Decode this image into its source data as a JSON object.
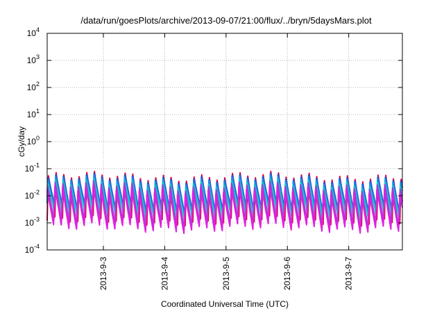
{
  "chart_data": {
    "type": "line",
    "title": "/data/run/goesPlots/archive/2013-09-07/21:00/flux/../bryn/5daysMars.plot",
    "xlabel": "Coordinated Universal Time (UTC)",
    "ylabel": "cGy/day",
    "yscale": "log",
    "ylim": [
      0.0001,
      10000
    ],
    "y_ticks": [
      {
        "base": "10",
        "exp": "-4",
        "value": 0.0001
      },
      {
        "base": "10",
        "exp": "-3",
        "value": 0.001
      },
      {
        "base": "10",
        "exp": "-2",
        "value": 0.01
      },
      {
        "base": "10",
        "exp": "-1",
        "value": 0.1
      },
      {
        "base": "10",
        "exp": "0",
        "value": 1
      },
      {
        "base": "10",
        "exp": "1",
        "value": 10
      },
      {
        "base": "10",
        "exp": "2",
        "value": 100
      },
      {
        "base": "10",
        "exp": "3",
        "value": 1000
      },
      {
        "base": "10",
        "exp": "4",
        "value": 10000
      }
    ],
    "xlim": [
      "2013-09-02 02:00",
      "2013-09-07 21:00"
    ],
    "x_ticks": [
      "2013-9-3",
      "2013-9-4",
      "2013-9-5",
      "2013-9-6",
      "2013-9-7"
    ],
    "grid": true,
    "oscillation_period_hours": 3,
    "series": [
      {
        "color": "#e0003c",
        "peak": 0.055,
        "trough": 0.0012
      },
      {
        "color": "#2050d8",
        "peak": 0.05,
        "trough": 0.003
      },
      {
        "color": "#1a8fe0",
        "peak": 0.04,
        "trough": 0.0025
      },
      {
        "color": "#19c9c9",
        "peak": 0.03,
        "trough": 0.002
      },
      {
        "color": "#a03cd8",
        "peak": 0.025,
        "trough": 0.0009
      },
      {
        "color": "#e020e0",
        "peak": 0.016,
        "trough": 0.0006
      }
    ]
  }
}
